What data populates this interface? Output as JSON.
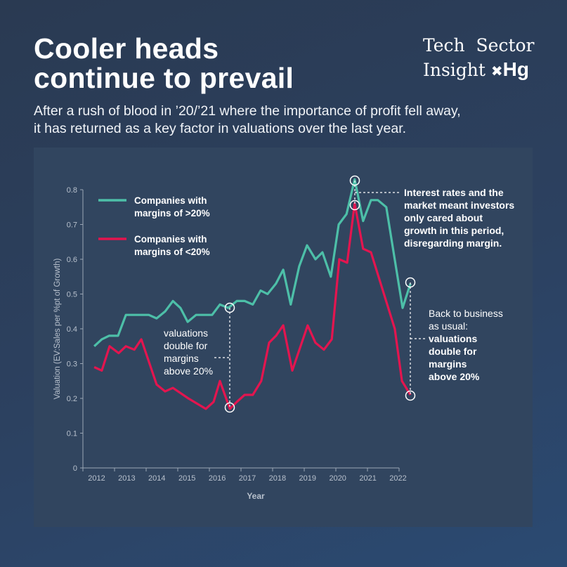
{
  "header": {
    "title_line1": "Cooler heads",
    "title_line2": "continue to prevail",
    "subtitle_line1": "After a rush of blood in ’20/’21 where the importance of profit fell away,",
    "subtitle_line2": "it has returned as a key factor in valuations over the last year."
  },
  "logo": {
    "line1": "Tech  Sector",
    "line2": "Insight",
    "brand": "Hg"
  },
  "chart_data": {
    "type": "line",
    "xlabel": "Year",
    "ylabel": "Valuation (EV:Sales per %pt of Growth)",
    "ylim": [
      0,
      0.8
    ],
    "yticks": [
      "0",
      "0.1",
      "0.2",
      "0.3",
      "0.4",
      "0.5",
      "0.6",
      "0.7",
      "0.8"
    ],
    "xticks": [
      "2012",
      "2013",
      "2014",
      "2015",
      "2016",
      "2017",
      "2018",
      "2019",
      "2020",
      "2021",
      "2022"
    ],
    "grid": false,
    "legend_placement": "top-left",
    "series": [
      {
        "name_line1": "Companies with",
        "name_line2": "margins of >20%",
        "color": "#4dbfa8",
        "x": [
          2012.41,
          2012.66,
          2012.9,
          2013.2,
          2013.46,
          2013.71,
          2013.99,
          2014.22,
          2014.48,
          2014.76,
          2015.02,
          2015.27,
          2015.51,
          2015.79,
          2016.32,
          2016.58,
          2016.86,
          2017.14,
          2017.4,
          2017.67,
          2017.93,
          2018.16,
          2018.44,
          2018.68,
          2018.93,
          2019.21,
          2019.47,
          2019.75,
          2019.98,
          2020.26,
          2020.52,
          2020.78,
          2021.05,
          2021.33,
          2021.59,
          2021.82,
          2022.1,
          2022.64,
          2022.9
        ],
        "y": [
          0.35,
          0.37,
          0.38,
          0.38,
          0.44,
          0.44,
          0.44,
          0.44,
          0.43,
          0.45,
          0.48,
          0.46,
          0.42,
          0.44,
          0.44,
          0.47,
          0.46,
          0.48,
          0.48,
          0.47,
          0.51,
          0.5,
          0.53,
          0.57,
          0.47,
          0.58,
          0.64,
          0.6,
          0.62,
          0.55,
          0.7,
          0.73,
          0.83,
          0.71,
          0.77,
          0.77,
          0.75,
          0.46,
          0.53
        ]
      },
      {
        "name_line1": "Companies with",
        "name_line2": "margins of <20%",
        "color": "#e3154f",
        "x": [
          2012.41,
          2012.66,
          2012.92,
          2013.22,
          2013.46,
          2013.74,
          2013.97,
          2014.48,
          2014.76,
          2015.02,
          2015.53,
          2016.11,
          2016.37,
          2016.58,
          2016.91,
          2017.14,
          2017.4,
          2017.67,
          2017.95,
          2018.21,
          2018.44,
          2018.68,
          2018.98,
          2019.49,
          2019.75,
          2020.03,
          2020.29,
          2020.54,
          2020.8,
          2021.05,
          2021.33,
          2021.59,
          2022.38,
          2022.62,
          2022.9
        ],
        "y": [
          0.29,
          0.28,
          0.35,
          0.33,
          0.35,
          0.34,
          0.37,
          0.24,
          0.22,
          0.23,
          0.2,
          0.17,
          0.19,
          0.25,
          0.17,
          0.19,
          0.21,
          0.21,
          0.25,
          0.36,
          0.38,
          0.41,
          0.28,
          0.41,
          0.36,
          0.34,
          0.37,
          0.6,
          0.59,
          0.76,
          0.63,
          0.62,
          0.4,
          0.25,
          0.21
        ]
      }
    ],
    "annotations": [
      {
        "lines": [
          "valuations",
          "double for",
          "margins",
          "above 20%"
        ],
        "bold_from": 4
      },
      {
        "lines": [
          "Interest rates and the",
          "market meant investors",
          "only cared about",
          "growth in this period,",
          "disregarding margin."
        ],
        "bold_from": 0
      },
      {
        "lines": [
          "Back to business",
          "as usual:",
          "valuations",
          "double for",
          "margins",
          "above 20%"
        ],
        "bold_from": 2
      }
    ]
  }
}
